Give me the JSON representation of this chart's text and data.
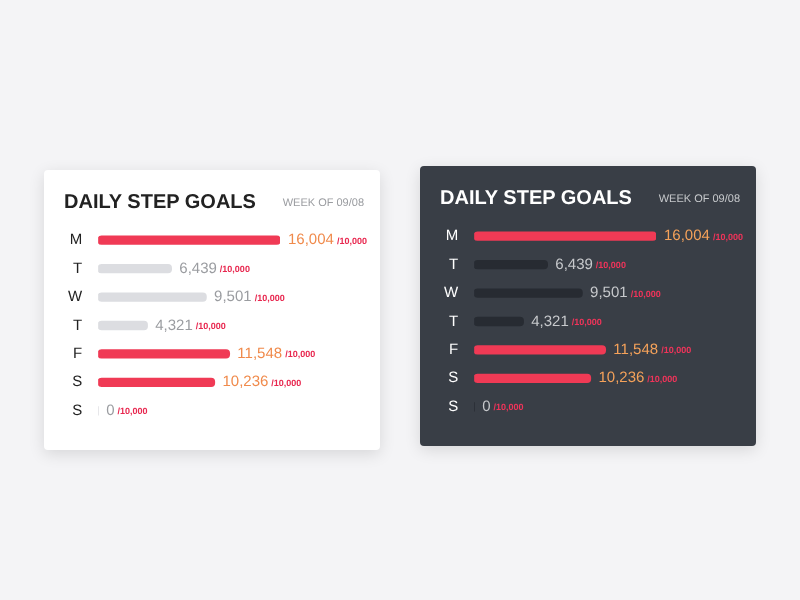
{
  "chart_data": [
    {
      "type": "bar",
      "orientation": "horizontal",
      "title": "DAILY STEP GOALS",
      "subtitle": "WEEK OF 09/08",
      "categories": [
        "M",
        "T",
        "W",
        "T",
        "F",
        "S",
        "S"
      ],
      "values": [
        16004,
        6439,
        9501,
        4321,
        11548,
        10236,
        0
      ],
      "colors": [
        "#f03a55",
        "#dcdde1",
        "#dcdde1",
        "#dcdde1",
        "#f03a55",
        "#f03a55",
        "#dcdde1"
      ],
      "value_labels": [
        "16,004 /10,000",
        "6,439 /10,000",
        "9,501 /10,000",
        "4,321 /10,000",
        "11,548 /10,000",
        "10,236 /10,000",
        "0 /10,000"
      ],
      "tick_labels": "y",
      "grid": false,
      "legend": false
    },
    {
      "type": "bar",
      "orientation": "horizontal",
      "title": "DAILY STEP GOALS",
      "subtitle": "WEEK OF 09/08",
      "categories": [
        "M",
        "T",
        "W",
        "T",
        "F",
        "S",
        "S"
      ],
      "values": [
        16004,
        6439,
        9501,
        4321,
        11548,
        10236,
        0
      ],
      "colors": [
        "#f03a55",
        "#272b32",
        "#272b32",
        "#272b32",
        "#f03a55",
        "#f03a55",
        "#272b32"
      ],
      "value_labels": [
        "16,004 /10,000",
        "6,439 /10,000",
        "9,501 /10,000",
        "4,321 /10,000",
        "11,548 /10,000",
        "10,236 /10,000",
        "0 /10,000"
      ],
      "tick_labels": "y",
      "grid": false,
      "legend": false
    }
  ]
}
